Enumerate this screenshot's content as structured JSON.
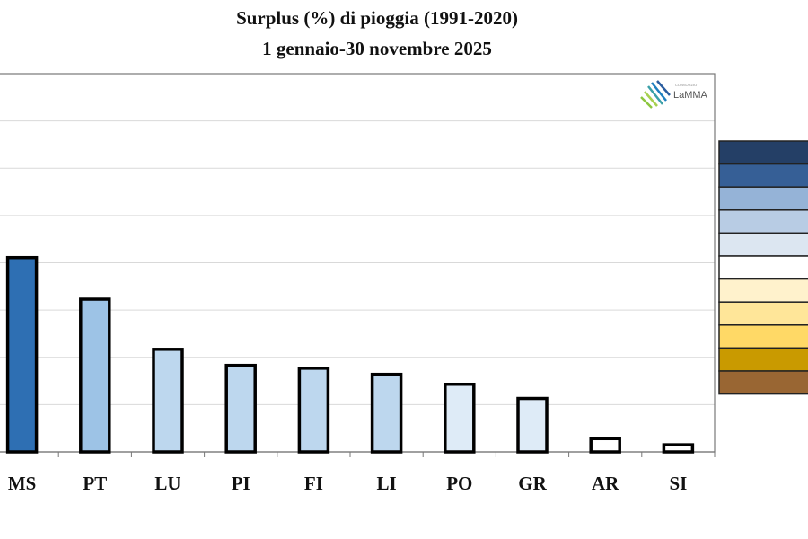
{
  "chart_data": {
    "type": "bar",
    "title": "Surplus (%) di pioggia (1991-2020)",
    "subtitle": "1 gennaio-30 novembre 2025",
    "categories": [
      "MS",
      "PT",
      "LU",
      "PI",
      "FI",
      "LI",
      "PO",
      "GR",
      "AR",
      "SI"
    ],
    "values": [
      4.11,
      3.23,
      2.17,
      1.83,
      1.77,
      1.64,
      1.43,
      1.13,
      0.28,
      0.15
    ],
    "value_units": "gridline steps (y-axis labels not visible)",
    "ylim": [
      0,
      8
    ],
    "grid": true,
    "bar_colors": [
      "#2e6fb3",
      "#9dc3e6",
      "#bdd7ee",
      "#bdd7ee",
      "#bdd7ee",
      "#bdd7ee",
      "#deebf7",
      "#deebf7",
      "#ffffff",
      "#ffffff"
    ],
    "legend_colors": [
      "#243f66",
      "#365f96",
      "#95b3d7",
      "#b8cce4",
      "#dce6f1",
      "#ffffff",
      "#fff2cc",
      "#ffe699",
      "#ffd966",
      "#c99a00",
      "#996633"
    ],
    "legend_placement": "right"
  },
  "logo": {
    "name": "LaMMA",
    "sub": "CONSORZIO"
  }
}
